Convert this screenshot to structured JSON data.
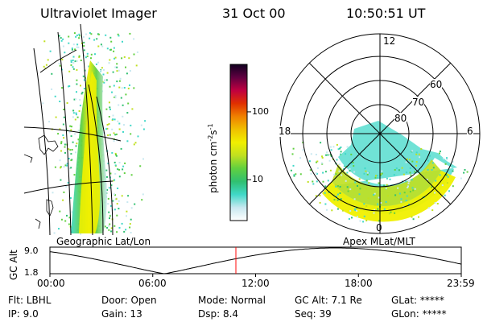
{
  "header": {
    "instrument": "Ultraviolet Imager",
    "date": "31 Oct 00",
    "time": "10:50:51 UT"
  },
  "panels": {
    "left_label": "Geographic Lat/Lon",
    "right_label": "Apex MLat/MLT"
  },
  "colorbar": {
    "unit_label": "photon cm",
    "unit_exp1": "-2",
    "unit_mid": "s",
    "unit_exp2": "-1",
    "ticks": [
      {
        "value": 10,
        "label": "10"
      },
      {
        "value": 100,
        "label": "100"
      }
    ],
    "range": [
      2.5,
      500
    ],
    "scale": "log",
    "colors": [
      "#ffffff",
      "#c8e8f0",
      "#40d8c8",
      "#30c070",
      "#60d040",
      "#c0e020",
      "#f0f000",
      "#f0c000",
      "#f08000",
      "#e03000",
      "#c00040",
      "#600040",
      "#100020"
    ]
  },
  "polar_plot": {
    "mlt_labels": [
      "12",
      "18",
      "6",
      "0"
    ],
    "mlat_labels": [
      "60",
      "70",
      "80"
    ],
    "mlat_rings": [
      50,
      60,
      70,
      80
    ]
  },
  "altitude_plot": {
    "ylabel": "GC Alt",
    "yticks": [
      "9.0",
      "1.8"
    ],
    "xticks": [
      "00:00",
      "06:00",
      "12:00",
      "18:00",
      "23:59"
    ],
    "ylim": [
      1.8,
      9.0
    ],
    "current_time_hours": 10.85,
    "curve_color": "#000000",
    "marker_color": "#ff0000"
  },
  "footer": {
    "row1": [
      {
        "label": "Flt:",
        "value": "LBHL"
      },
      {
        "label": "Door:",
        "value": "Open"
      },
      {
        "label": "Mode:",
        "value": "Normal"
      },
      {
        "label": "GC Alt:",
        "value": "7.1 Re"
      },
      {
        "label": "GLat:",
        "value": "*****"
      }
    ],
    "row2": [
      {
        "label": "IP:",
        "value": "9.0"
      },
      {
        "label": "Gain:",
        "value": "13"
      },
      {
        "label": "Dsp:",
        "value": "8.4"
      },
      {
        "label": "Seq:",
        "value": "39"
      },
      {
        "label": "GLon:",
        "value": "*****"
      }
    ]
  }
}
